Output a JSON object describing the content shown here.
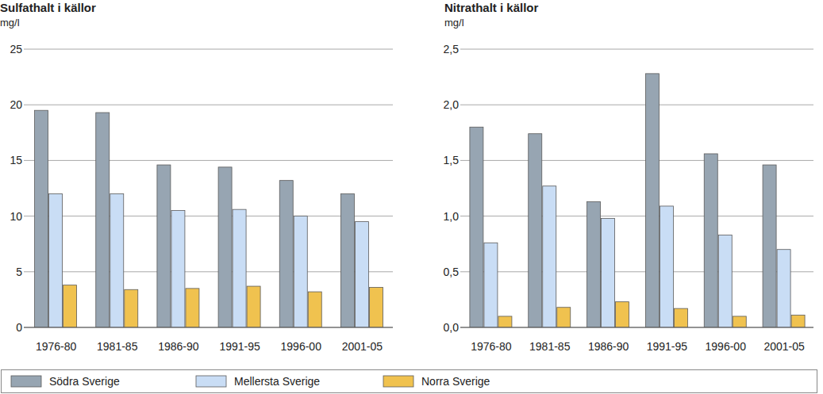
{
  "chart_data": [
    {
      "type": "bar",
      "title": "Sulfathalt i källor",
      "y_label": "mg/l",
      "categories": [
        "1976-80",
        "1981-85",
        "1986-90",
        "1991-95",
        "1996-00",
        "2001-05"
      ],
      "series": [
        {
          "name": "Södra Sverige",
          "color": "#97a5b2",
          "values": [
            19.5,
            19.3,
            14.6,
            14.4,
            13.2,
            12.0
          ]
        },
        {
          "name": "Mellersta Sverige",
          "color": "#c9ddf5",
          "values": [
            12.0,
            12.0,
            10.5,
            10.6,
            10.0,
            9.5
          ]
        },
        {
          "name": "Norra Sverige",
          "color": "#f0c24f",
          "values": [
            3.8,
            3.4,
            3.5,
            3.7,
            3.2,
            3.6
          ]
        }
      ],
      "ylim": [
        0,
        25
      ],
      "yticks": [
        0,
        5,
        10,
        15,
        20,
        25
      ],
      "grid": true,
      "legend": "bottom"
    },
    {
      "type": "bar",
      "title": "Nitrathalt i källor",
      "y_label": "mg/l",
      "categories": [
        "1976-80",
        "1981-85",
        "1986-90",
        "1991-95",
        "1996-00",
        "2001-05"
      ],
      "series": [
        {
          "name": "Södra Sverige",
          "color": "#97a5b2",
          "values": [
            1.8,
            1.74,
            1.13,
            2.28,
            1.56,
            1.46
          ]
        },
        {
          "name": "Mellersta Sverige",
          "color": "#c9ddf5",
          "values": [
            0.76,
            1.27,
            0.98,
            1.09,
            0.83,
            0.7
          ]
        },
        {
          "name": "Norra Sverige",
          "color": "#f0c24f",
          "values": [
            0.1,
            0.18,
            0.23,
            0.17,
            0.1,
            0.11
          ]
        }
      ],
      "ylim": [
        0,
        2.5
      ],
      "yticks": [
        {
          "value": 0,
          "label": "0,0"
        },
        {
          "value": 0.5,
          "label": "0,5"
        },
        {
          "value": 1,
          "label": "1,0"
        },
        {
          "value": 1.5,
          "label": "1,5"
        },
        {
          "value": 2,
          "label": "2,0"
        },
        {
          "value": 2.5,
          "label": "2,5"
        }
      ],
      "grid": true
    }
  ]
}
